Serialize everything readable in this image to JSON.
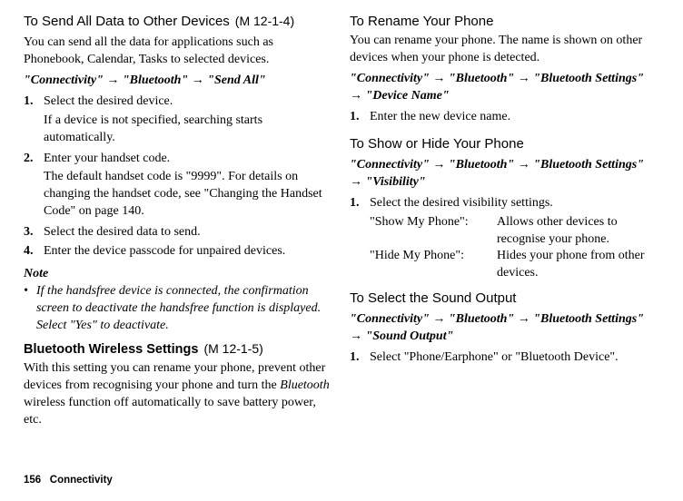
{
  "left": {
    "section1": {
      "title": "To Send All Data to Other Devices",
      "menu": "(M 12-1-4)",
      "intro": "You can send all the data for applications such as Phonebook, Calendar, Tasks to selected devices.",
      "path_parts": [
        "\"Connectivity\"",
        "\"Bluetooth\"",
        "\"Send All\""
      ],
      "steps": [
        {
          "num": "1.",
          "text": "Select the desired device.",
          "sub": "If a device is not specified, searching starts automatically."
        },
        {
          "num": "2.",
          "text": "Enter your handset code.",
          "sub": "The default handset code is \"9999\". For details on changing the handset code, see \"Changing the Handset Code\" on page 140."
        },
        {
          "num": "3.",
          "text": "Select the desired data to send."
        },
        {
          "num": "4.",
          "text": "Enter the device passcode for unpaired devices."
        }
      ],
      "note_label": "Note",
      "note_text": "If the handsfree device is connected, the confirmation screen to deactivate the handsfree function is displayed. Select \"Yes\" to deactivate."
    },
    "section2": {
      "title": "Bluetooth Wireless Settings",
      "menu": "(M 12-1-5)",
      "intro_pre": "With this setting you can rename your phone, prevent other devices from recognising your phone and turn the ",
      "intro_ital": "Bluetooth",
      "intro_post": " wireless function off automatically to save battery power, etc."
    }
  },
  "right": {
    "rename": {
      "title": "To Rename Your Phone",
      "intro": "You can rename your phone. The name is shown on other devices when your phone is detected.",
      "path_parts": [
        "\"Connectivity\"",
        "\"Bluetooth\"",
        "\"Bluetooth Settings\"",
        "\"Device Name\""
      ],
      "step_num": "1.",
      "step_text": "Enter the new device name."
    },
    "visibility": {
      "title": "To Show or Hide Your Phone",
      "path_parts": [
        "\"Connectivity\"",
        "\"Bluetooth\"",
        "\"Bluetooth Settings\"",
        "\"Visibility\""
      ],
      "step_num": "1.",
      "step_text": "Select the desired visibility settings.",
      "defs": [
        {
          "term": "\"Show My Phone\":",
          "desc": "Allows other devices to recognise your phone."
        },
        {
          "term": "\"Hide My Phone\":",
          "desc": "Hides your phone from other devices."
        }
      ]
    },
    "sound": {
      "title": "To Select the Sound Output",
      "path_parts": [
        "\"Connectivity\"",
        "\"Bluetooth\"",
        "\"Bluetooth Settings\"",
        "\"Sound Output\""
      ],
      "step_num": "1.",
      "step_text": "Select \"Phone/Earphone\" or \"Bluetooth Device\"."
    }
  },
  "arrow": "→",
  "footer": {
    "page": "156",
    "label": "Connectivity"
  }
}
